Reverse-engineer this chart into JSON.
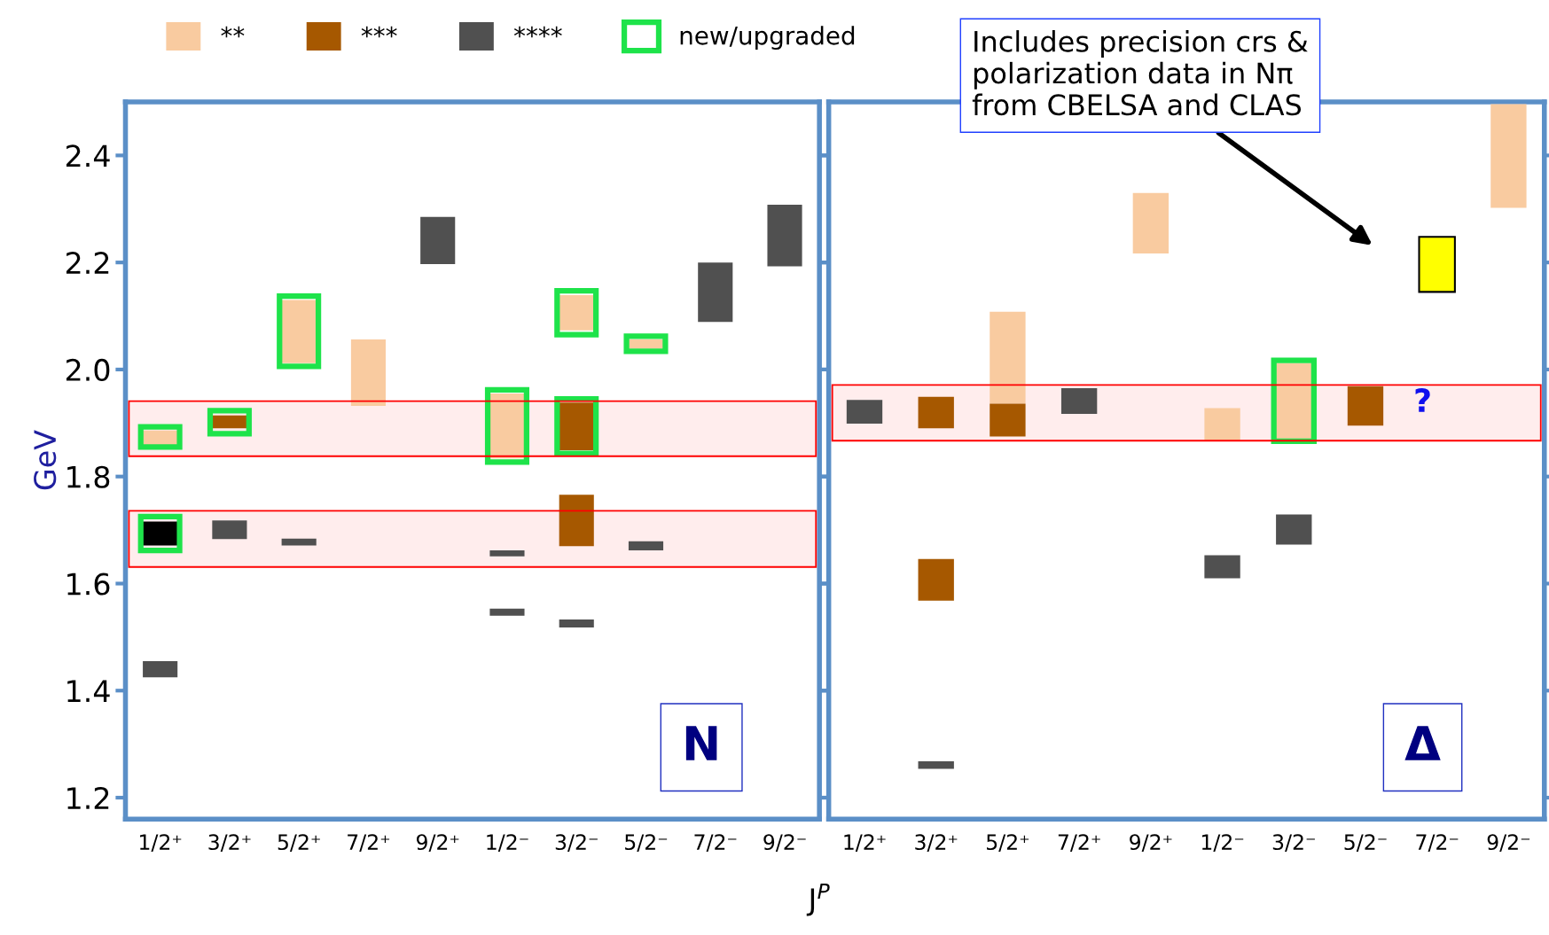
{
  "chart_data": [
    {
      "type": "bar",
      "categories": [
        "1/2⁺",
        "3/2⁺",
        "5/2⁺",
        "7/2⁺",
        "9/2⁺",
        "1/2⁻",
        "3/2⁻",
        "5/2⁻",
        "7/2⁻",
        "9/2⁻"
      ],
      "xlabel": "J$^{P}$",
      "ylabel": "GeV",
      "ylim": [
        1.16,
        2.5
      ],
      "yticks": [
        1.2,
        1.4,
        1.6,
        1.8,
        {
          "value": 2.0,
          "label": "2.0"
        },
        2.2,
        2.4
      ],
      "legend": "top",
      "grid": false,
      "series": [
        {
          "name": "**",
          "color": "#f9cba0",
          "base": [
            1.858,
            null,
            2.012,
            1.932,
            null,
            1.834,
            2.073,
            2.039,
            null,
            null
          ],
          "values": [
            0.028,
            null,
            0.118,
            0.124,
            null,
            0.121,
            0.066,
            0.017,
            null,
            null
          ]
        },
        {
          "name": "***",
          "color": "#a65800",
          "base": [
            null,
            1.89,
            null,
            null,
            null,
            null,
            1.67,
            null,
            null,
            null
          ],
          "values": [
            null,
            0.024,
            null,
            null,
            null,
            null,
            0.096,
            null,
            null,
            null
          ]
        },
        {
          "color": "#a65800",
          "base": [
            null,
            null,
            null,
            null,
            null,
            null,
            1.849,
            null,
            null,
            null
          ],
          "values": [
            null,
            null,
            null,
            null,
            null,
            null,
            0.089,
            null,
            null,
            null
          ]
        },
        {
          "name": "****",
          "color": "#505050",
          "base": [
            1.425,
            1.683,
            1.671,
            null,
            2.197,
            1.651,
            1.518,
            1.662,
            2.089,
            2.193
          ],
          "values": [
            0.03,
            0.035,
            0.013,
            null,
            0.088,
            0.011,
            0.015,
            0.017,
            0.111,
            0.115
          ]
        },
        {
          "color": "#505050",
          "base": [
            null,
            null,
            null,
            null,
            null,
            1.54,
            null,
            null,
            null,
            null
          ],
          "values": [
            null,
            null,
            null,
            null,
            null,
            0.013,
            null,
            null,
            null,
            null
          ]
        },
        {
          "color": "#000000",
          "base": [
            1.671,
            null,
            null,
            null,
            null,
            null,
            null,
            null,
            null,
            null
          ],
          "values": [
            0.045,
            null,
            null,
            null,
            null,
            null,
            null,
            null,
            null,
            null
          ]
        },
        {
          "name": "new/upgraded",
          "line_style": "solid",
          "color": "#1ee34a",
          "base": [
            1.855,
            1.88,
            2.006,
            null,
            null,
            1.827,
            1.843,
            2.034,
            null,
            null
          ],
          "values": [
            0.038,
            0.043,
            0.131,
            null,
            null,
            0.135,
            0.102,
            0.028,
            null,
            null
          ]
        },
        {
          "line_style": "solid",
          "color": "#1ee34a",
          "base": [
            1.662,
            null,
            null,
            null,
            null,
            null,
            2.065,
            null,
            null,
            null
          ],
          "values": [
            0.063,
            null,
            null,
            null,
            null,
            null,
            0.082,
            null,
            null,
            null
          ]
        }
      ],
      "bands": [
        {
          "axis": "y",
          "from": 1.838,
          "to": 1.941,
          "color": "#ff0000"
        },
        {
          "axis": "y",
          "from": 1.631,
          "to": 1.736,
          "color": "#ff0000"
        }
      ],
      "annotations": [
        "N"
      ]
    },
    {
      "type": "bar",
      "categories": [
        "1/2⁺",
        "3/2⁺",
        "5/2⁺",
        "7/2⁺",
        "9/2⁺",
        "1/2⁻",
        "3/2⁻",
        "5/2⁻",
        "7/2⁻",
        "9/2⁻"
      ],
      "ylim": [
        1.16,
        2.5
      ],
      "yticks": [
        1.2,
        1.4,
        1.6,
        1.8,
        2.0,
        2.2,
        2.4
      ],
      "tick_labels": "x",
      "grid": false,
      "series": [
        {
          "color": "#f9cba0",
          "base": [
            null,
            null,
            1.936,
            null,
            2.217,
            1.867,
            1.869,
            null,
            null,
            2.302
          ],
          "values": [
            null,
            null,
            0.172,
            null,
            0.113,
            0.061,
            0.143,
            null,
            null,
            0.194
          ]
        },
        {
          "color": "#a65800",
          "base": [
            null,
            1.89,
            1.875,
            null,
            null,
            null,
            null,
            1.895,
            null,
            null
          ],
          "values": [
            null,
            0.059,
            0.061,
            null,
            null,
            null,
            null,
            0.074,
            null,
            null
          ]
        },
        {
          "color": "#a65800",
          "base": [
            null,
            1.568,
            null,
            null,
            null,
            null,
            null,
            null,
            null,
            null
          ],
          "values": [
            null,
            0.078,
            null,
            null,
            null,
            null,
            null,
            null,
            null,
            null
          ]
        },
        {
          "color": "#505050",
          "base": [
            1.899,
            1.254,
            null,
            1.917,
            null,
            1.61,
            1.673,
            null,
            null,
            null
          ],
          "values": [
            0.044,
            0.014,
            null,
            0.048,
            null,
            0.043,
            0.056,
            null,
            null,
            null
          ]
        },
        {
          "color": "#ffff00",
          "base": [
            null,
            null,
            null,
            null,
            null,
            null,
            null,
            null,
            2.145,
            null
          ],
          "values": [
            null,
            null,
            null,
            null,
            null,
            null,
            null,
            null,
            0.103,
            null
          ]
        },
        {
          "line_style": "solid",
          "color": "#1ee34a",
          "base": [
            null,
            null,
            null,
            null,
            null,
            null,
            1.866,
            null,
            null,
            null
          ],
          "values": [
            null,
            null,
            null,
            null,
            null,
            null,
            0.151,
            null,
            null,
            null
          ]
        }
      ],
      "bands": [
        {
          "axis": "y",
          "from": 1.867,
          "to": 1.971,
          "color": "#ff0000"
        }
      ],
      "annotations": [
        "Δ",
        "?",
        "Includes precision crs &\npolarization data in Nπ\nfrom CBELSA and CLAS"
      ]
    }
  ]
}
